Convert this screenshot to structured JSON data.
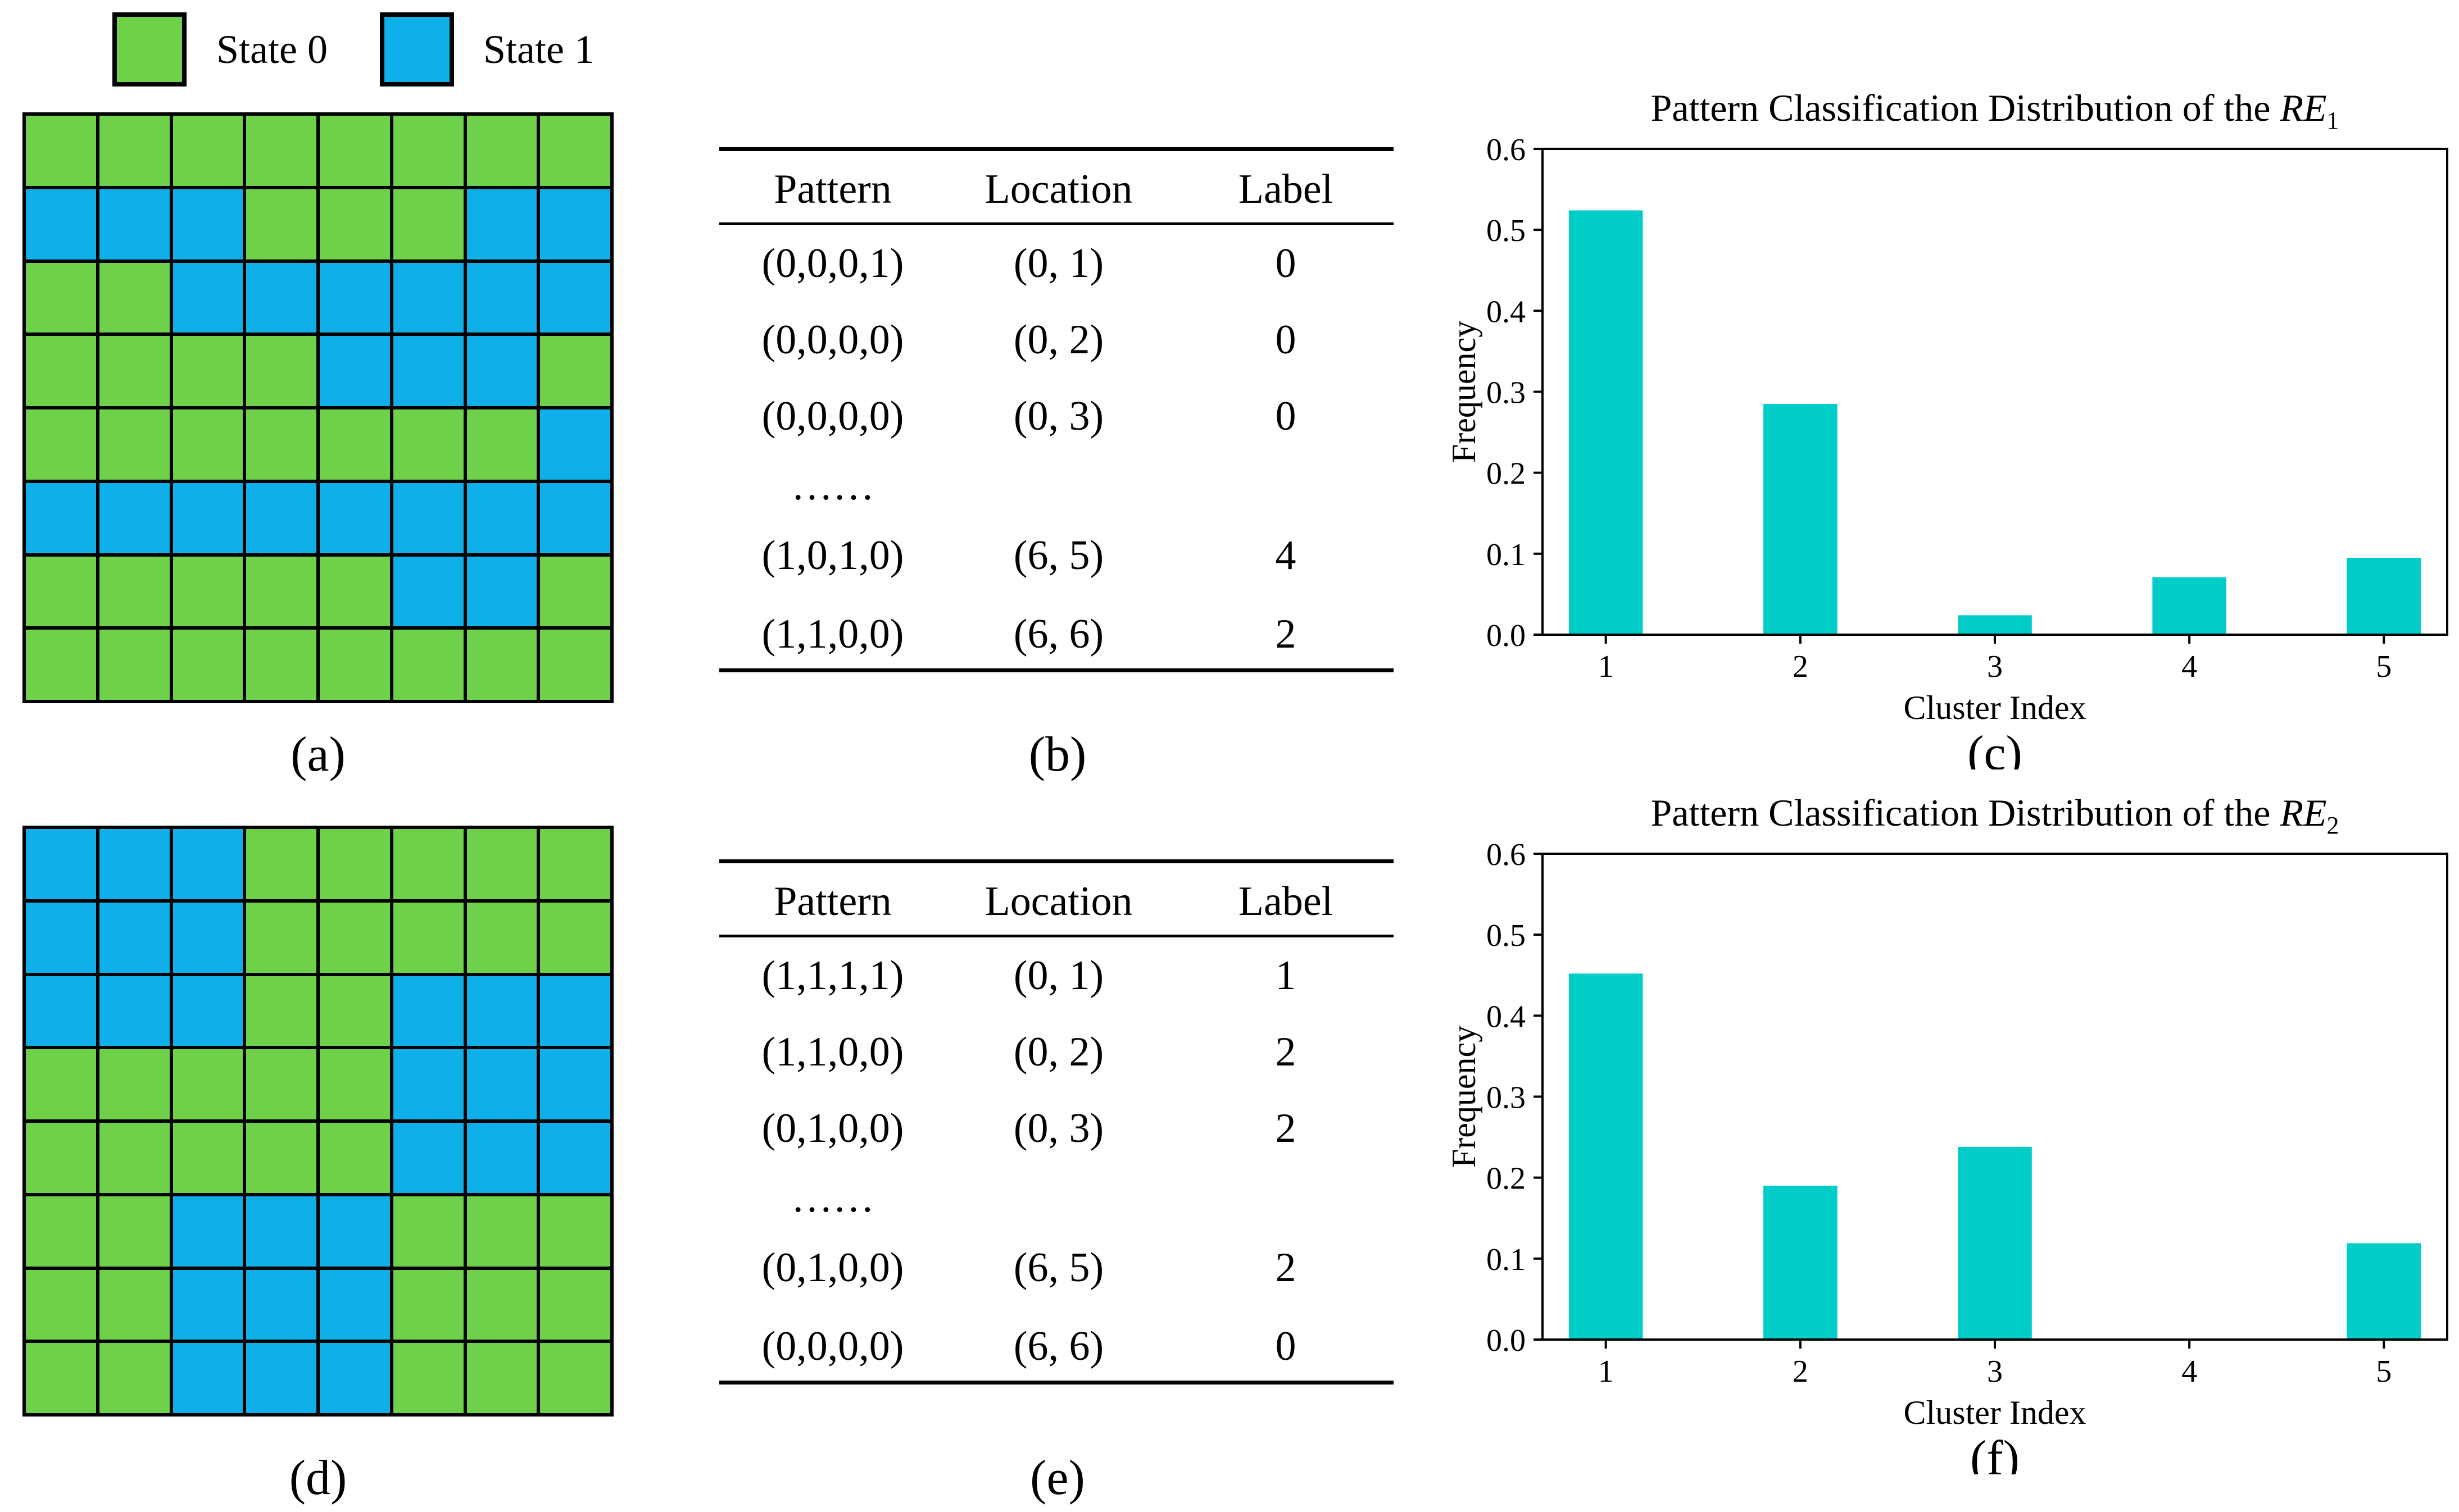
{
  "legend": {
    "items": [
      {
        "label": "State 0",
        "color": "#6fd14a"
      },
      {
        "label": "State 1",
        "color": "#0fb0ea"
      }
    ]
  },
  "colors": {
    "state0": "#6fd14a",
    "state1": "#0fb0ea",
    "bar": "#00cdc8"
  },
  "grids": [
    {
      "panel_label": "(a)",
      "cells": [
        [
          0,
          0,
          0,
          0,
          0,
          0,
          0,
          0
        ],
        [
          1,
          1,
          1,
          0,
          0,
          0,
          1,
          1
        ],
        [
          0,
          0,
          1,
          1,
          1,
          1,
          1,
          1
        ],
        [
          0,
          0,
          0,
          0,
          1,
          1,
          1,
          0
        ],
        [
          0,
          0,
          0,
          0,
          0,
          0,
          0,
          1
        ],
        [
          1,
          1,
          1,
          1,
          1,
          1,
          1,
          1
        ],
        [
          0,
          0,
          0,
          0,
          0,
          1,
          1,
          0
        ],
        [
          0,
          0,
          0,
          0,
          0,
          0,
          0,
          0
        ]
      ]
    },
    {
      "panel_label": "(d)",
      "cells": [
        [
          1,
          1,
          1,
          0,
          0,
          0,
          0,
          0
        ],
        [
          1,
          1,
          1,
          0,
          0,
          0,
          0,
          0
        ],
        [
          1,
          1,
          1,
          0,
          0,
          1,
          1,
          1
        ],
        [
          0,
          0,
          0,
          0,
          0,
          1,
          1,
          1
        ],
        [
          0,
          0,
          0,
          0,
          0,
          1,
          1,
          1
        ],
        [
          0,
          0,
          1,
          1,
          1,
          0,
          0,
          0
        ],
        [
          0,
          0,
          1,
          1,
          1,
          0,
          0,
          0
        ],
        [
          0,
          0,
          1,
          1,
          1,
          0,
          0,
          0
        ]
      ]
    }
  ],
  "tables": [
    {
      "panel_label": "(b)",
      "headers": [
        "Pattern",
        "Location",
        "Label"
      ],
      "rows": [
        [
          "(0,0,0,1)",
          "(0, 1)",
          "0"
        ],
        [
          "(0,0,0,0)",
          "(0, 2)",
          "0"
        ],
        [
          "(0,0,0,0)",
          "(0, 3)",
          "0"
        ],
        [
          "(1,0,1,0)",
          "(6, 5)",
          "4"
        ],
        [
          "(1,1,0,0)",
          "(6, 6)",
          "2"
        ]
      ],
      "ellipsis": "……"
    },
    {
      "panel_label": "(e)",
      "headers": [
        "Pattern",
        "Location",
        "Label"
      ],
      "rows": [
        [
          "(1,1,1,1)",
          "(0, 1)",
          "1"
        ],
        [
          "(1,1,0,0)",
          "(0, 2)",
          "2"
        ],
        [
          "(0,1,0,0)",
          "(0, 3)",
          "2"
        ],
        [
          "(0,1,0,0)",
          "(6, 5)",
          "2"
        ],
        [
          "(0,0,0,0)",
          "(6, 6)",
          "0"
        ]
      ],
      "ellipsis": "……"
    }
  ],
  "chart_data": [
    {
      "type": "bar",
      "panel_label": "(c)",
      "title": "Pattern Classification Distribution of the ",
      "title_italic": "RE",
      "title_subscript": "1",
      "xlabel": "Cluster Index",
      "ylabel": "Frequency",
      "categories": [
        "1",
        "2",
        "3",
        "4",
        "5"
      ],
      "values": [
        0.524,
        0.285,
        0.024,
        0.071,
        0.095
      ],
      "ylim": [
        0.0,
        0.6
      ],
      "yticks": [
        "0.0",
        "0.1",
        "0.2",
        "0.3",
        "0.4",
        "0.5",
        "0.6"
      ],
      "color": "#00cdc8"
    },
    {
      "type": "bar",
      "panel_label": "(f)",
      "title": "Pattern Classification Distribution of the ",
      "title_italic": "RE",
      "title_subscript": "2",
      "xlabel": "Cluster Index",
      "ylabel": "Frequency",
      "categories": [
        "1",
        "2",
        "3",
        "4",
        "5"
      ],
      "values": [
        0.452,
        0.19,
        0.238,
        0.0,
        0.119
      ],
      "ylim": [
        0.0,
        0.6
      ],
      "yticks": [
        "0.0",
        "0.1",
        "0.2",
        "0.3",
        "0.4",
        "0.5",
        "0.6"
      ],
      "color": "#00cdc8"
    }
  ]
}
